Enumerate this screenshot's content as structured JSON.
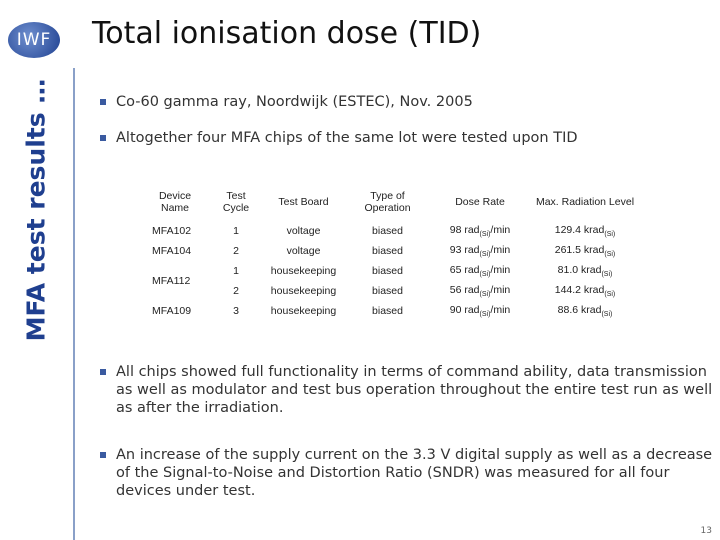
{
  "sidebar": {
    "logo": "IWF",
    "section": "MFA test results …"
  },
  "title": "Total ionisation dose (TID)",
  "bullets_top": [
    "Co-60 gamma ray, Noordwijk (ESTEC), Nov. 2005",
    "Altogether four MFA chips of the same lot were tested upon TID"
  ],
  "table": {
    "headers": [
      "Device Name",
      "Test Cycle",
      "Test Board",
      "Type of Operation",
      "Dose Rate",
      "Max. Radiation Level"
    ],
    "devices": [
      {
        "device": "MFA102",
        "tests": [
          {
            "cycle": "1",
            "board": "voltage",
            "operation": "biased",
            "dose_rate": [
              "98 rad",
              "(Si)",
              "/min"
            ],
            "max_radiation": [
              "129.4 krad",
              "(Si)"
            ]
          }
        ]
      },
      {
        "device": "MFA104",
        "tests": [
          {
            "cycle": "2",
            "board": "voltage",
            "operation": "biased",
            "dose_rate": [
              "93 rad",
              "(Si)",
              "/min"
            ],
            "max_radiation": [
              "261.5 krad",
              "(Si)"
            ]
          }
        ]
      },
      {
        "device": "MFA112",
        "tests": [
          {
            "cycle": "1",
            "board": "housekeeping",
            "operation": "biased",
            "dose_rate": [
              "65 rad",
              "(Si)",
              "/min"
            ],
            "max_radiation": [
              "81.0 krad",
              "(Si)"
            ]
          },
          {
            "cycle": "2",
            "board": "housekeeping",
            "operation": "biased",
            "dose_rate": [
              "56 rad",
              "(Si)",
              "/min"
            ],
            "max_radiation": [
              "144.2 krad",
              "(Si)"
            ]
          }
        ]
      },
      {
        "device": "MFA109",
        "tests": [
          {
            "cycle": "3",
            "board": "housekeeping",
            "operation": "biased",
            "dose_rate": [
              "90 rad",
              "(Si)",
              "/min"
            ],
            "max_radiation": [
              "88.6 krad",
              "(Si)"
            ]
          }
        ]
      }
    ]
  },
  "bullets_bottom": [
    "All chips showed full functionality in terms of command ability, data transmission as well as modulator and test bus operation throughout the entire test run as well as after the irradiation.",
    "An increase of the supply current on the 3.3 V digital supply as well as a decrease of the Signal-to-Noise and Distortion Ratio (SNDR) was measured for all four devices under test."
  ],
  "page_number": "13"
}
